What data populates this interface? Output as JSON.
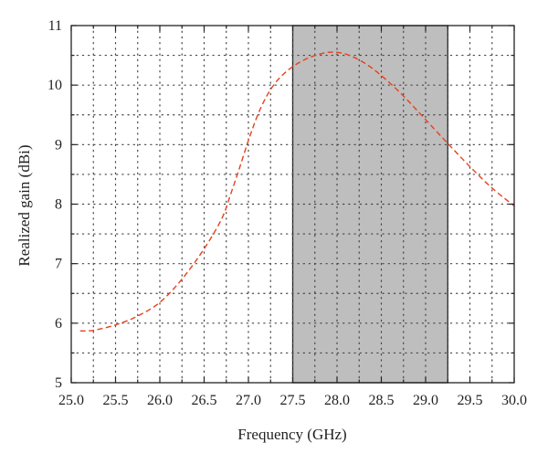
{
  "chart_data": {
    "type": "line",
    "xlabel": "Frequency (GHz)",
    "ylabel": "Realized gain (dBi)",
    "xlim": [
      25.0,
      30.0
    ],
    "ylim": [
      5,
      11
    ],
    "x_ticks": [
      "25.0",
      "25.5",
      "26.0",
      "26.5",
      "27.0",
      "27.5",
      "28.0",
      "28.5",
      "29.0",
      "29.5",
      "30.0"
    ],
    "y_ticks": [
      "5",
      "6",
      "7",
      "8",
      "9",
      "10",
      "11"
    ],
    "grid": "dotted, major and minor",
    "shaded_band": {
      "x_range": [
        27.5,
        29.25
      ],
      "color": "#bebebe"
    },
    "series": [
      {
        "color": "#e8401c",
        "style": "dashed",
        "x": [
          25.1,
          25.25,
          25.5,
          25.75,
          26.0,
          26.25,
          26.5,
          26.7,
          26.8,
          26.9,
          27.0,
          27.1,
          27.2,
          27.3,
          27.4,
          27.5,
          27.6,
          27.7,
          27.8,
          27.9,
          28.0,
          28.1,
          28.2,
          28.3,
          28.4,
          28.5,
          28.6,
          28.7,
          28.8,
          28.9,
          29.0,
          29.25,
          29.5,
          29.75,
          30.0
        ],
        "y": [
          5.87,
          5.88,
          5.97,
          6.12,
          6.35,
          6.74,
          7.25,
          7.76,
          8.17,
          8.61,
          9.07,
          9.48,
          9.8,
          10.03,
          10.19,
          10.31,
          10.4,
          10.47,
          10.52,
          10.55,
          10.55,
          10.52,
          10.46,
          10.38,
          10.28,
          10.16,
          10.03,
          9.89,
          9.74,
          9.58,
          9.42,
          9.02,
          8.63,
          8.27,
          7.97
        ]
      }
    ]
  }
}
